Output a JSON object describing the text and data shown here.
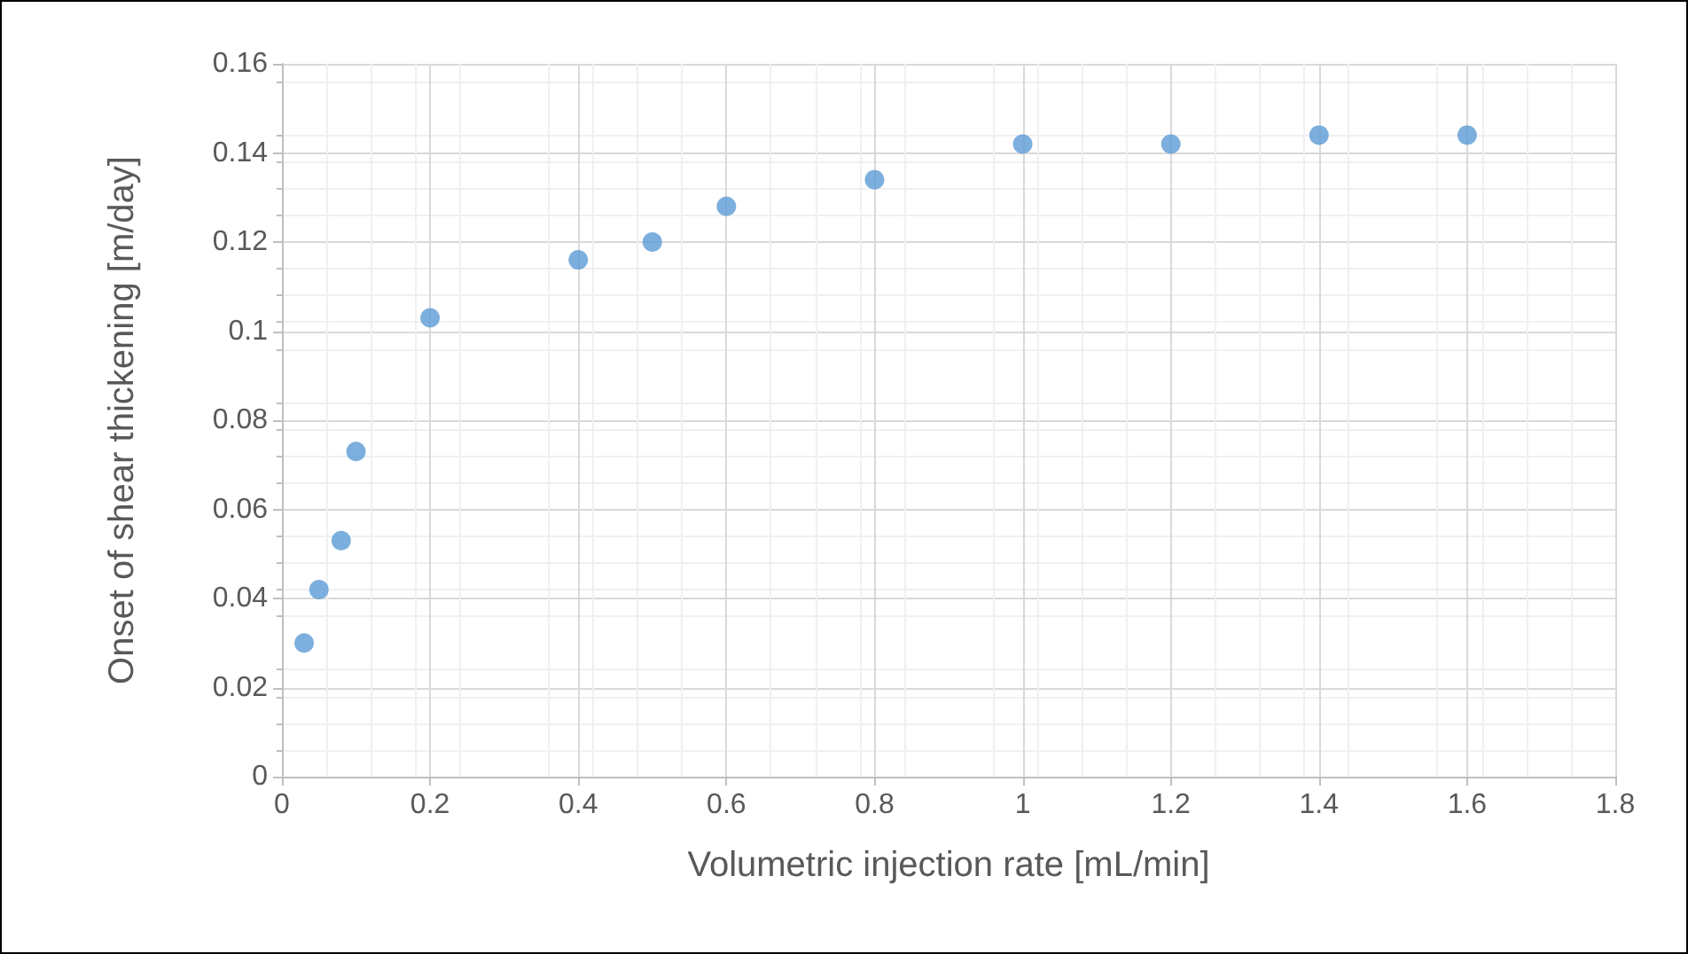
{
  "chart_data": {
    "type": "scatter",
    "xlabel": "Volumetric injection rate [mL/min]",
    "ylabel": "Onset of shear thickening [m/day]",
    "x": [
      0.03,
      0.05,
      0.08,
      0.1,
      0.2,
      0.4,
      0.5,
      0.6,
      0.8,
      1.0,
      1.2,
      1.4,
      1.6
    ],
    "values": [
      0.03,
      0.042,
      0.053,
      0.073,
      0.103,
      0.116,
      0.12,
      0.128,
      0.134,
      0.142,
      0.142,
      0.144,
      0.144
    ],
    "color": "#5b9bd5",
    "marker": "circle",
    "xlim": [
      0,
      1.8
    ],
    "xticks": [
      0,
      0.2,
      0.4,
      0.6,
      0.8,
      1,
      1.2,
      1.4,
      1.6,
      1.8
    ],
    "ylim": [
      0,
      0.16
    ],
    "yticks": [
      0,
      0.02,
      0.04,
      0.06,
      0.08,
      0.1,
      0.12,
      0.14,
      0.16
    ],
    "grid": true
  }
}
